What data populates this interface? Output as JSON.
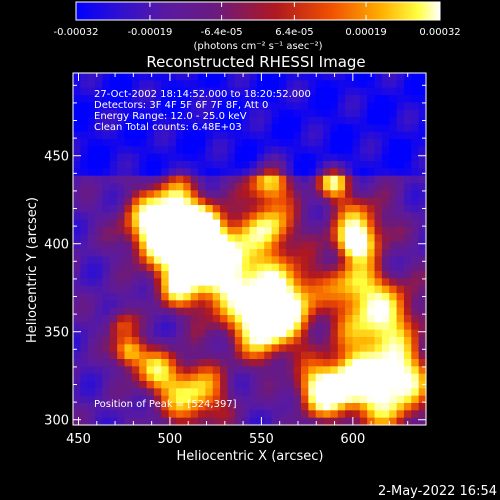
{
  "chart_data": {
    "type": "heatmap",
    "title": "Reconstructed RHESSI Image",
    "xlabel": "Heliocentric X (arcsec)",
    "ylabel": "Heliocentric Y (arcsec)",
    "xlim": [
      447,
      640
    ],
    "ylim": [
      297,
      497
    ],
    "x_ticks": [
      450,
      500,
      550,
      600
    ],
    "y_ticks": [
      300,
      350,
      400,
      450
    ],
    "colorbar": {
      "range": [
        -0.00032,
        0.00032
      ],
      "tick_values": [
        -0.00032,
        -0.00019,
        -6.4e-05,
        6.4e-05,
        0.00019,
        0.00032
      ],
      "tick_labels": [
        "-0.00032",
        "-0.00019",
        "-6.4e-05",
        "6.4e-05",
        "0.00019",
        "0.00032"
      ],
      "unit_label": "(photons cm⁻² s⁻¹ asec⁻²)",
      "colors": [
        "#0000ff",
        "#3a12c8",
        "#5a1aa0",
        "#7a1878",
        "#c01818",
        "#f05a00",
        "#ffb000",
        "#ffff50",
        "#ffffff"
      ]
    },
    "annotations": [
      "27-Oct-2002 18:14:52.000 to 18:20:52.000",
      "Detectors: 3F 4F 5F 6F 7F 8F, Att 0",
      "Energy Range: 12.0 - 25.0 keV",
      "Clean      Total counts: 6.48E+03",
      "Position of Peak = [524,397]"
    ],
    "peak": [
      524,
      397
    ],
    "grid": false
  },
  "footer": {
    "date": "2-May-2022 16:54"
  }
}
